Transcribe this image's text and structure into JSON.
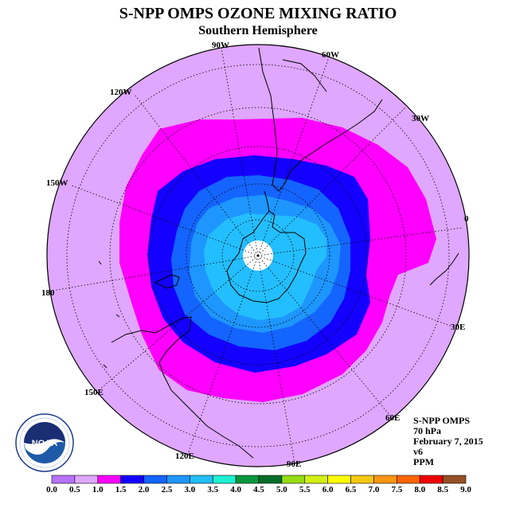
{
  "header": {
    "title": "S-NPP OMPS OZONE MIXING RATIO",
    "subtitle": "Southern Hemisphere"
  },
  "map": {
    "projection": "polar stereographic, south pole centered",
    "longitude_labels": [
      "90W",
      "60W",
      "30W",
      "0",
      "30E",
      "60E",
      "90E",
      "120E",
      "150E",
      "180",
      "150W",
      "120W"
    ],
    "contour_classes": [
      {
        "range": "1.0-1.5",
        "color": "#ff00ff"
      },
      {
        "range": "1.5-2.0",
        "color": "#1400ff"
      },
      {
        "range": "2.0-2.5",
        "color": "#1464ff"
      },
      {
        "range": "2.5-3.0",
        "color": "#1e96ff"
      },
      {
        "range": "3.0-3.5",
        "color": "#23beff"
      },
      {
        "range": "0.5-1.0",
        "color": "#dfa7ff"
      }
    ],
    "background_color": "#dfa7ff",
    "missing_data_color": "#ffffff"
  },
  "info": {
    "instrument": "S-NPP OMPS",
    "level": "70 hPa",
    "date": "February 7, 2015",
    "version": "v6",
    "units": "PPM"
  },
  "logo": {
    "text": "NOAA",
    "ring_text": "NATIONAL OCEANIC AND ATMOSPHERIC ADMINISTRATION · U.S. DEPARTMENT OF COMMERCE"
  },
  "colorbar": {
    "ticks": [
      "0.0",
      "0.5",
      "1.0",
      "1.5",
      "2.0",
      "2.5",
      "3.0",
      "3.5",
      "4.0",
      "4.5",
      "5.0",
      "5.5",
      "6.0",
      "6.5",
      "7.0",
      "7.5",
      "8.0",
      "8.5",
      "9.0"
    ],
    "colors": [
      "#b673ff",
      "#dfa7ff",
      "#ff00ff",
      "#1400ff",
      "#1464ff",
      "#1e96ff",
      "#23beff",
      "#1ef0d2",
      "#0a963c",
      "#056e28",
      "#96dc14",
      "#d2f014",
      "#ffff00",
      "#f5c814",
      "#ff9614",
      "#ff6400",
      "#f00000",
      "#965028"
    ]
  }
}
